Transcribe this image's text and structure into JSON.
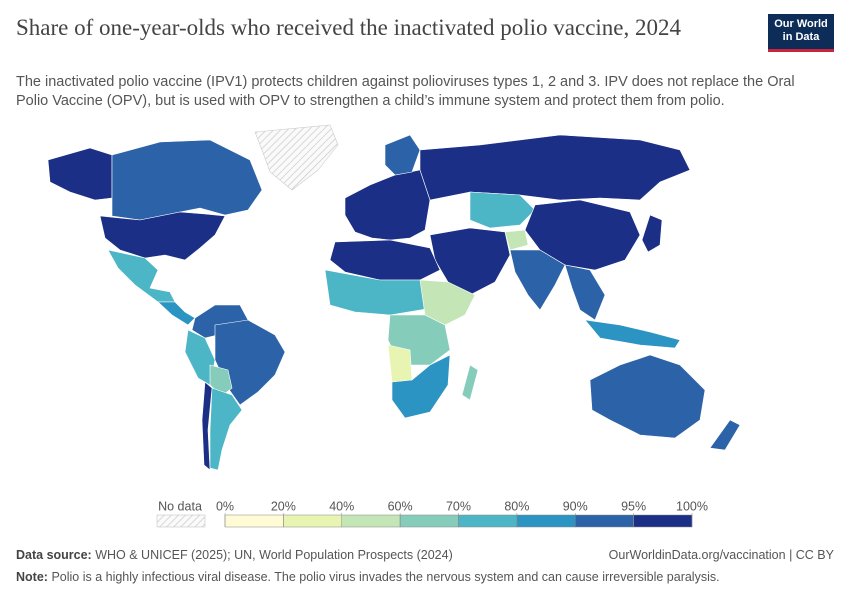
{
  "header": {
    "title": "Share of one-year-olds who received the inactivated polio vaccine, 2024",
    "subtitle": "The inactivated polio vaccine (IPV1) protects children against polioviruses types 1, 2 and 3. IPV does not replace the Oral Polio Vaccine (OPV), but is used with OPV to strengthen a child’s immune system and protect them from polio.",
    "logo": [
      "Our World",
      "in Data"
    ]
  },
  "legend": {
    "no_data_label": "No data",
    "ticks": [
      {
        "value": 0,
        "label": "0%"
      },
      {
        "value": 20,
        "label": "20%"
      },
      {
        "value": 40,
        "label": "40%"
      },
      {
        "value": 60,
        "label": "60%"
      },
      {
        "value": 70,
        "label": "70%"
      },
      {
        "value": 80,
        "label": "80%"
      },
      {
        "value": 90,
        "label": "90%"
      },
      {
        "value": 95,
        "label": "95%"
      },
      {
        "value": 100,
        "label": "100%"
      }
    ],
    "colors": [
      "#fffcd5",
      "#e8f4b1",
      "#c4e6b6",
      "#85ccbb",
      "#4cb5c6",
      "#2b94c3",
      "#2c62a8",
      "#1a2f85"
    ]
  },
  "footer": {
    "source_label": "Data source:",
    "source": "WHO & UNICEF (2025); UN, World Population Prospects (2024)",
    "url": "OurWorldinData.org/vaccination | CC BY",
    "note_label": "Note:",
    "note": "Polio is a highly infectious viral disease. The polio virus invades the nervous system and can cause irreversible paralysis."
  }
}
